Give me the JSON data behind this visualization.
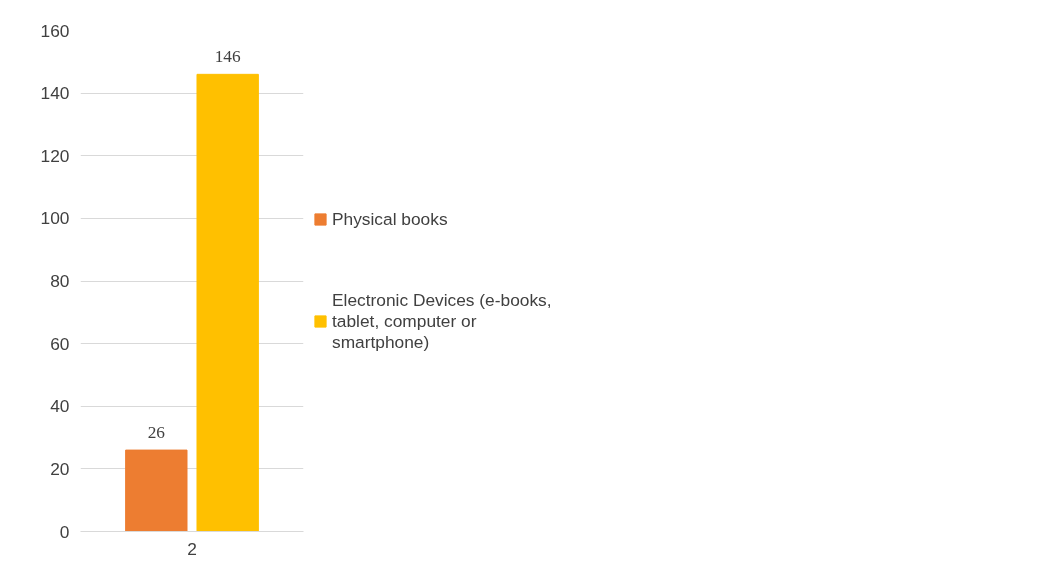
{
  "chart_data": {
    "type": "bar",
    "categories": [
      "2"
    ],
    "series": [
      {
        "name": "Physical books",
        "color": "#ed7d31",
        "values": [
          26
        ]
      },
      {
        "name": "Electronic Devices (e-books, tablet, computer or smartphone)",
        "color": "#ffc000",
        "values": [
          146
        ]
      }
    ],
    "ylim": [
      0,
      160
    ],
    "yticks": [
      0,
      20,
      40,
      60,
      80,
      100,
      120,
      140,
      160
    ],
    "grid": "y",
    "legend": "right",
    "data_labels": true
  }
}
